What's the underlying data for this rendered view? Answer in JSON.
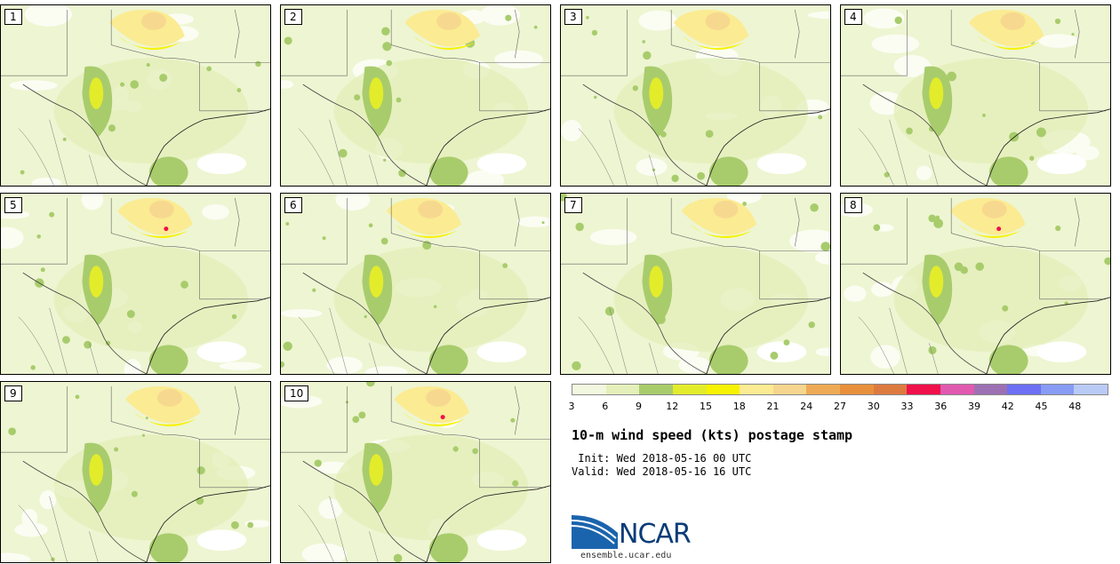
{
  "panels": [
    {
      "label": "1"
    },
    {
      "label": "2"
    },
    {
      "label": "3"
    },
    {
      "label": "4"
    },
    {
      "label": "5"
    },
    {
      "label": "6"
    },
    {
      "label": "7"
    },
    {
      "label": "8"
    },
    {
      "label": "9"
    },
    {
      "label": "10"
    }
  ],
  "colorbar": {
    "colors": [
      "#f2f7df",
      "#e4efba",
      "#a8cc6c",
      "#e3ec2a",
      "#f7f200",
      "#fbeb92",
      "#f6d58e",
      "#eeaa55",
      "#e8903c",
      "#dd7a40",
      "#f0104a",
      "#e05ab0",
      "#9d70b4",
      "#6d6ff5",
      "#889cf5",
      "#b9caf5"
    ],
    "ticks": [
      "3",
      "6",
      "9",
      "12",
      "15",
      "18",
      "21",
      "24",
      "27",
      "30",
      "33",
      "36",
      "39",
      "42",
      "45",
      "48"
    ]
  },
  "title": "10-m wind speed (kts) postage stamp",
  "init_line": " Init: Wed 2018-05-16 00 UTC",
  "valid_line": "Valid: Wed 2018-05-16 16 UTC",
  "logo_text": "NCAR",
  "logo_url": "ensemble.ucar.edu"
}
